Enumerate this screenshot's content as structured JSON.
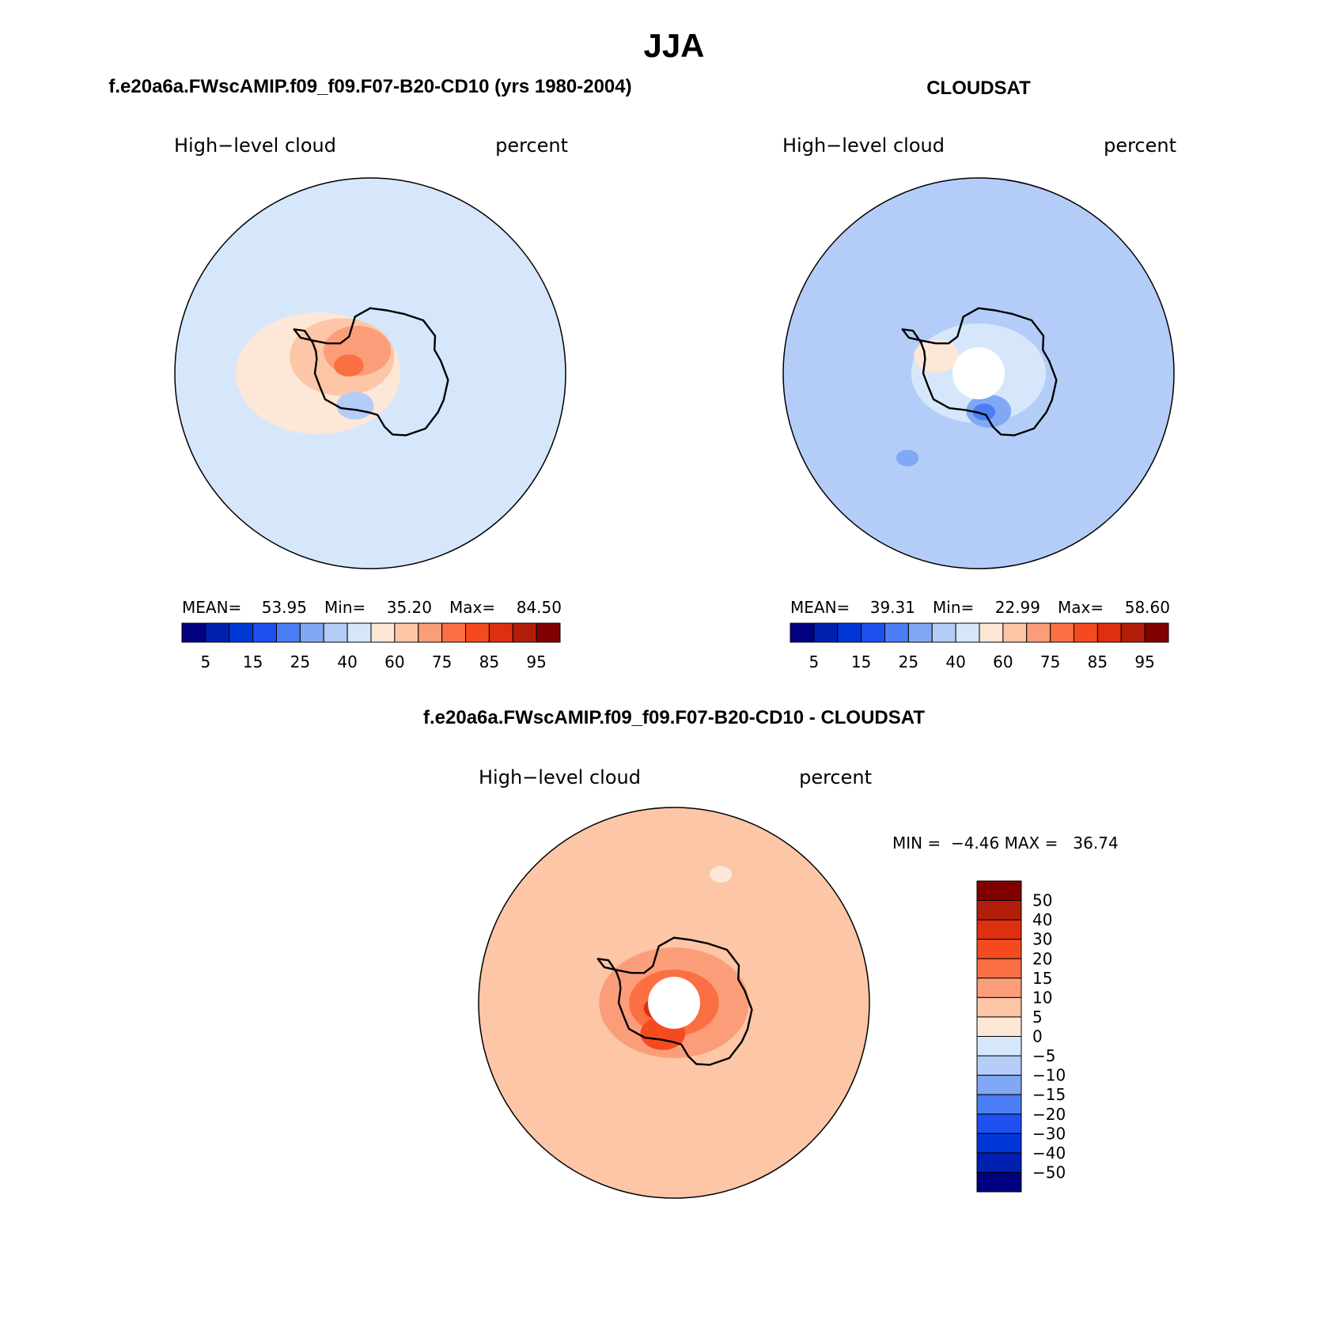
{
  "title": "JJA",
  "colors": {
    "seq": [
      "#000080",
      "#0020b0",
      "#0038d8",
      "#1e50f0",
      "#4b7ef5",
      "#80a8f5",
      "#b4cdf8",
      "#d6e7fb",
      "#fde7d7",
      "#fcc6a7",
      "#fc9d7a",
      "#fb7042",
      "#f54a1f",
      "#dc3010",
      "#b31e0a",
      "#800000"
    ],
    "diff": [
      "#800000",
      "#b31e0a",
      "#dc3010",
      "#f54a1f",
      "#fb7042",
      "#fc9d7a",
      "#fcc6a7",
      "#fde7d7",
      "#d6e7fb",
      "#b4cdf8",
      "#80a8f5",
      "#4b7ef5",
      "#1e50f0",
      "#0038d8",
      "#0020b0",
      "#000080"
    ]
  },
  "chart_data": [
    {
      "type": "heatmap",
      "projection": "south-polar-stereographic",
      "title": "f.e20a6a.FWscAMIP.f09_f09.F07-B20-CD10 (yrs 1980-2004)",
      "left_label": "High−level cloud",
      "right_label": "percent",
      "stats": {
        "mean_label": "MEAN=",
        "mean": "53.95",
        "min_label": "Min=",
        "min": "35.20",
        "max_label": "Max=",
        "max": "84.50"
      },
      "colorbar_ticks": [
        "5",
        "15",
        "25",
        "40",
        "60",
        "75",
        "85",
        "95"
      ],
      "field": {
        "background": 7,
        "regions": [
          {
            "level": 8,
            "center_lon": 270,
            "center_lat": -74,
            "radius_deg": 22
          },
          {
            "level": 9,
            "center_lon": 300,
            "center_lat": -80,
            "radius_deg": 14
          },
          {
            "level": 10,
            "center_lon": 330,
            "center_lat": -82,
            "radius_deg": 9
          },
          {
            "level": 11,
            "center_lon": 290,
            "center_lat": -83,
            "radius_deg": 4
          },
          {
            "level": 6,
            "center_lon": 205,
            "center_lat": -79,
            "radius_deg": 5
          }
        ]
      }
    },
    {
      "type": "heatmap",
      "projection": "south-polar-stereographic",
      "title": "CLOUDSAT",
      "left_label": "High−level cloud",
      "right_label": "percent",
      "stats": {
        "mean_label": "MEAN=",
        "mean": "39.31",
        "min_label": "Min=",
        "min": "22.99",
        "max_label": "Max=",
        "max": "58.60"
      },
      "colorbar_ticks": [
        "5",
        "15",
        "25",
        "40",
        "60",
        "75",
        "85",
        "95"
      ],
      "data_mask_lat": -82,
      "field": {
        "background": 6,
        "regions": [
          {
            "level": 7,
            "center_lon": 0,
            "center_lat": -90,
            "radius_deg": 18
          },
          {
            "level": 8,
            "center_lon": 292,
            "center_lat": -76,
            "radius_deg": 6
          },
          {
            "level": 5,
            "center_lon": 165,
            "center_lat": -78,
            "radius_deg": 6
          },
          {
            "level": 4,
            "center_lon": 172,
            "center_lat": -78,
            "radius_deg": 3
          },
          {
            "level": 5,
            "center_lon": 220,
            "center_lat": -56,
            "radius_deg": 3
          }
        ]
      }
    },
    {
      "type": "heatmap",
      "projection": "south-polar-stereographic",
      "title": "f.e20a6a.FWscAMIP.f09_f09.F07-B20-CD10 - CLOUDSAT",
      "left_label": "High−level cloud",
      "right_label": "percent",
      "minmax_text": "MIN =  −4.46 MAX =   36.74",
      "colorbar_ticks": [
        "50",
        "40",
        "30",
        "20",
        "15",
        "10",
        "5",
        "0",
        "−5",
        "−10",
        "−15",
        "−20",
        "−30",
        "−40",
        "−50"
      ],
      "data_mask_lat": -82,
      "field": {
        "background": 6,
        "regions": [
          {
            "level": 5,
            "center_lon": 0,
            "center_lat": -90,
            "radius_deg": 20
          },
          {
            "level": 4,
            "center_lon": 0,
            "center_lat": -90,
            "radius_deg": 12
          },
          {
            "level": 3,
            "center_lon": 200,
            "center_lat": -80,
            "radius_deg": 6
          },
          {
            "level": 2,
            "center_lon": 250,
            "center_lat": -85,
            "radius_deg": 4
          },
          {
            "level": 7,
            "center_lon": 20,
            "center_lat": -48,
            "radius_deg": 3
          }
        ]
      }
    }
  ]
}
